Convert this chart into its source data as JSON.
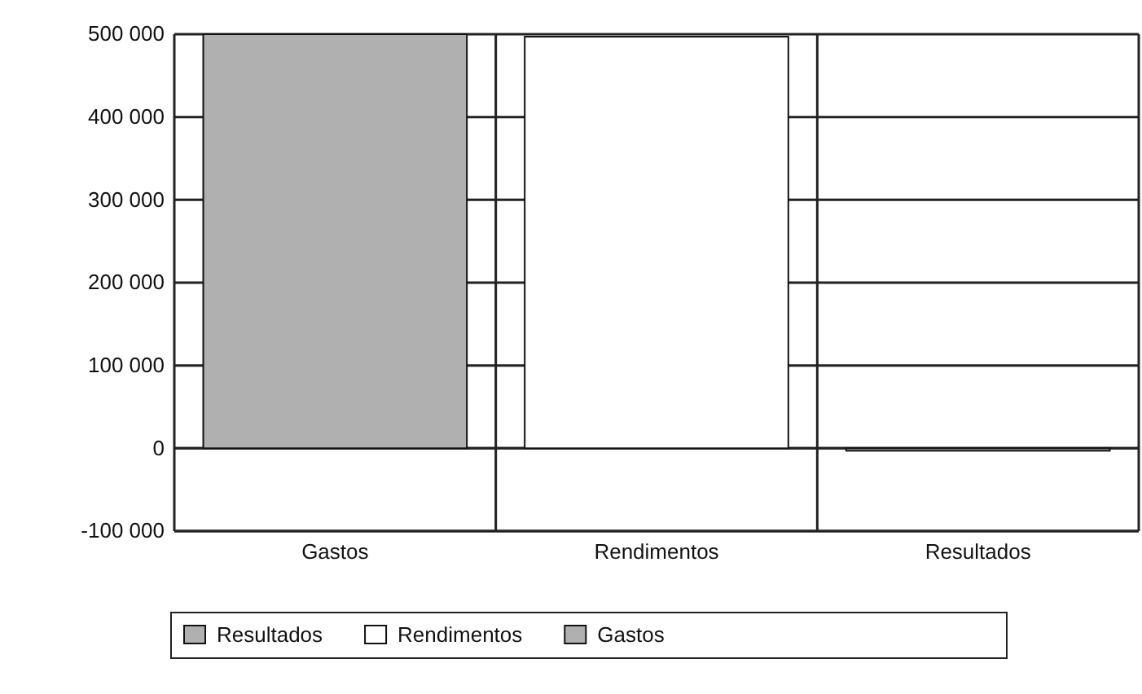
{
  "chart_data": {
    "type": "bar",
    "categories": [
      "Gastos",
      "Rendimentos",
      "Resultados"
    ],
    "series": [
      {
        "name": "Resultados",
        "color": "#b0b0b0",
        "values": [
          null,
          null,
          -3000
        ]
      },
      {
        "name": "Rendimentos",
        "color": "#ffffff",
        "values": [
          null,
          497000,
          null
        ]
      },
      {
        "name": "Gastos",
        "color": "#b0b0b0",
        "values": [
          500000,
          null,
          null
        ]
      }
    ],
    "ylim": [
      -100000,
      500000
    ],
    "yticks": [
      {
        "value": -100000,
        "label": "-100 000"
      },
      {
        "value": 0,
        "label": "0"
      },
      {
        "value": 100000,
        "label": "100 000"
      },
      {
        "value": 200000,
        "label": "200 000"
      },
      {
        "value": 300000,
        "label": "300 000"
      },
      {
        "value": 400000,
        "label": "400 000"
      },
      {
        "value": 500000,
        "label": "500 000"
      }
    ],
    "grid": true,
    "legend": "bottom"
  }
}
